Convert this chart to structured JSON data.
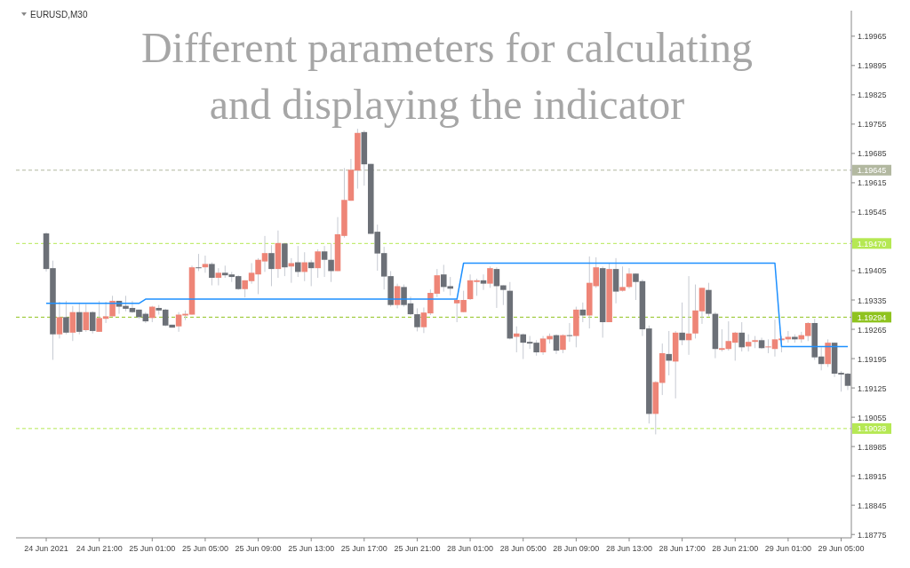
{
  "chart_data": {
    "type": "candlestick",
    "title": "Different parameters for calculating and displaying the indicator",
    "subtitle": "EURUSD,M30",
    "categories": [
      "24 Jun 2021",
      null,
      null,
      null,
      null,
      null,
      null,
      null,
      "24 Jun 21:00",
      null,
      null,
      null,
      null,
      null,
      null,
      null,
      "25 Jun 01:00",
      null,
      null,
      null,
      null,
      null,
      null,
      null,
      "25 Jun 05:00",
      null,
      null,
      null,
      null,
      null,
      null,
      null,
      "25 Jun 09:00",
      null,
      null,
      null,
      null,
      null,
      null,
      null,
      "25 Jun 13:00",
      null,
      null,
      null,
      null,
      null,
      null,
      null,
      "25 Jun 17:00",
      null,
      null,
      null,
      null,
      null,
      null,
      null,
      "25 Jun 21:00",
      null,
      null,
      null,
      null,
      null,
      null,
      null,
      "28 Jun 01:00",
      null,
      null,
      null,
      null,
      null,
      null,
      null,
      "28 Jun 05:00",
      null,
      null,
      null,
      null,
      null,
      null,
      null,
      "28 Jun 09:00",
      null,
      null,
      null,
      null,
      null,
      null,
      null,
      "28 Jun 13:00",
      null,
      null,
      null,
      null,
      null,
      null,
      null,
      "28 Jun 17:00",
      null,
      null,
      null,
      null,
      null,
      null,
      null,
      "28 Jun 21:00",
      null,
      null,
      null,
      null,
      null,
      null,
      null,
      "29 Jun 01:00",
      null,
      null,
      null,
      null,
      null,
      null,
      null,
      "29 Jun 05:00",
      null
    ],
    "ohlc": [
      [
        1.19494,
        1.19497,
        1.19403,
        1.19409
      ],
      [
        1.19411,
        1.19429,
        1.19192,
        1.19253
      ],
      [
        1.19253,
        1.19331,
        1.19243,
        1.19294
      ],
      [
        1.19294,
        1.19333,
        1.19253,
        1.19257
      ],
      [
        1.19257,
        1.19321,
        1.19237,
        1.19306
      ],
      [
        1.19306,
        1.19329,
        1.19253,
        1.19259
      ],
      [
        1.19263,
        1.19325,
        1.19259,
        1.19306
      ],
      [
        1.19306,
        1.19308,
        1.19255,
        1.19261
      ],
      [
        1.19259,
        1.19333,
        1.19259,
        1.19292
      ],
      [
        1.1929,
        1.19331,
        1.1928,
        1.19296
      ],
      [
        1.19296,
        1.19345,
        1.19296,
        1.19333
      ],
      [
        1.19333,
        1.19333,
        1.19302,
        1.19319
      ],
      [
        1.19321,
        1.19345,
        1.19308,
        1.19314
      ],
      [
        1.19316,
        1.19333,
        1.19304,
        1.19306
      ],
      [
        1.19312,
        1.19312,
        1.1929,
        1.19294
      ],
      [
        1.19302,
        1.19306,
        1.1928,
        1.19284
      ],
      [
        1.19292,
        1.19321,
        1.19282,
        1.19319
      ],
      [
        1.19316,
        1.19323,
        1.193,
        1.1931
      ],
      [
        1.19312,
        1.19314,
        1.19272,
        1.19274
      ],
      [
        1.19276,
        1.19276,
        1.19269,
        1.19269
      ],
      [
        1.19272,
        1.19306,
        1.19259,
        1.193
      ],
      [
        1.19298,
        1.1931,
        1.19287,
        1.19302
      ],
      [
        1.193,
        1.19417,
        1.193,
        1.19413
      ],
      [
        1.19413,
        1.19445,
        1.19404,
        1.19411
      ],
      [
        1.19413,
        1.19441,
        1.194,
        1.19421
      ],
      [
        1.19421,
        1.19425,
        1.1937,
        1.19388
      ],
      [
        1.19388,
        1.19411,
        1.1937,
        1.194
      ],
      [
        1.194,
        1.19417,
        1.19388,
        1.19394
      ],
      [
        1.19396,
        1.19402,
        1.19378,
        1.1939
      ],
      [
        1.19392,
        1.19394,
        1.19359,
        1.19361
      ],
      [
        1.19361,
        1.19382,
        1.19341,
        1.19382
      ],
      [
        1.1938,
        1.19423,
        1.19374,
        1.194
      ],
      [
        1.19396,
        1.19435,
        1.19349,
        1.19431
      ],
      [
        1.19427,
        1.19488,
        1.19402,
        1.19447
      ],
      [
        1.19447,
        1.19466,
        1.19368,
        1.19409
      ],
      [
        1.19409,
        1.19501,
        1.19388,
        1.19471
      ],
      [
        1.1947,
        1.1947,
        1.19392,
        1.19413
      ],
      [
        1.19415,
        1.19435,
        1.19376,
        1.19423
      ],
      [
        1.19425,
        1.19464,
        1.1939,
        1.19402
      ],
      [
        1.19402,
        1.19449,
        1.1938,
        1.19425
      ],
      [
        1.19425,
        1.19431,
        1.19368,
        1.19411
      ],
      [
        1.19411,
        1.19456,
        1.19388,
        1.19451
      ],
      [
        1.19451,
        1.19464,
        1.1939,
        1.19431
      ],
      [
        1.19431,
        1.1947,
        1.19378,
        1.19404
      ],
      [
        1.19404,
        1.19533,
        1.19404,
        1.19492
      ],
      [
        1.19488,
        1.1965,
        1.19484,
        1.19574
      ],
      [
        1.19572,
        1.19672,
        1.19572,
        1.19646
      ],
      [
        1.19644,
        1.19744,
        1.19601,
        1.19734
      ],
      [
        1.19736,
        1.1974,
        1.19608,
        1.19659
      ],
      [
        1.1966,
        1.1966,
        1.19493,
        1.19493
      ],
      [
        1.19498,
        1.19515,
        1.19405,
        1.19446
      ],
      [
        1.19447,
        1.19462,
        1.1936,
        1.19391
      ],
      [
        1.19392,
        1.19404,
        1.19319,
        1.19323
      ],
      [
        1.19323,
        1.19374,
        1.19315,
        1.19368
      ],
      [
        1.19366,
        1.19372,
        1.19319,
        1.19323
      ],
      [
        1.19327,
        1.19343,
        1.19299,
        1.19301
      ],
      [
        1.19301,
        1.19315,
        1.1926,
        1.1927
      ],
      [
        1.1927,
        1.19317,
        1.19256,
        1.19305
      ],
      [
        1.19303,
        1.1936,
        1.19299,
        1.19352
      ],
      [
        1.1935,
        1.19409,
        1.19342,
        1.19394
      ],
      [
        1.19396,
        1.19419,
        1.19355,
        1.19366
      ],
      [
        1.19368,
        1.1939,
        1.19346,
        1.19362
      ],
      [
        1.19327,
        1.19337,
        1.19282,
        1.19335
      ],
      [
        1.19306,
        1.19357,
        1.19306,
        1.19335
      ],
      [
        1.19337,
        1.19396,
        1.19335,
        1.19382
      ],
      [
        1.19378,
        1.19386,
        1.19345,
        1.19382
      ],
      [
        1.19382,
        1.19396,
        1.19359,
        1.19374
      ],
      [
        1.19374,
        1.19415,
        1.19364,
        1.19411
      ],
      [
        1.19409,
        1.19413,
        1.19316,
        1.19368
      ],
      [
        1.1937,
        1.1937,
        1.19323,
        1.19359
      ],
      [
        1.19357,
        1.19378,
        1.19241,
        1.19243
      ],
      [
        1.19247,
        1.19272,
        1.1921,
        1.19255
      ],
      [
        1.19253,
        1.19255,
        1.19194,
        1.19233
      ],
      [
        1.19235,
        1.19249,
        1.19218,
        1.19231
      ],
      [
        1.19233,
        1.19239,
        1.19202,
        1.1921
      ],
      [
        1.1921,
        1.19249,
        1.19204,
        1.19243
      ],
      [
        1.19241,
        1.19255,
        1.19231,
        1.19249
      ],
      [
        1.19251,
        1.19253,
        1.19206,
        1.19214
      ],
      [
        1.19216,
        1.19253,
        1.19208,
        1.19251
      ],
      [
        1.19251,
        1.1928,
        1.19235,
        1.19249
      ],
      [
        1.19249,
        1.19319,
        1.19222,
        1.19312
      ],
      [
        1.19312,
        1.19329,
        1.19282,
        1.19298
      ],
      [
        1.19298,
        1.19439,
        1.19267,
        1.19376
      ],
      [
        1.19368,
        1.19437,
        1.19364,
        1.19413
      ],
      [
        1.19411,
        1.19415,
        1.19245,
        1.19282
      ],
      [
        1.19282,
        1.19423,
        1.19282,
        1.19409
      ],
      [
        1.19409,
        1.19435,
        1.19327,
        1.19355
      ],
      [
        1.19357,
        1.19415,
        1.19355,
        1.19366
      ],
      [
        1.19366,
        1.19411,
        1.19362,
        1.19398
      ],
      [
        1.19398,
        1.19398,
        1.19335,
        1.19378
      ],
      [
        1.1938,
        1.19384,
        1.19249,
        1.19265
      ],
      [
        1.19267,
        1.19274,
        1.1904,
        1.19063
      ],
      [
        1.19063,
        1.19141,
        1.19014,
        1.19139
      ],
      [
        1.19137,
        1.19231,
        1.19108,
        1.19208
      ],
      [
        1.19206,
        1.19261,
        1.19155,
        1.1919
      ],
      [
        1.19188,
        1.19261,
        1.191,
        1.19257
      ],
      [
        1.19257,
        1.19329,
        1.19227,
        1.19239
      ],
      [
        1.19239,
        1.19392,
        1.19204,
        1.19255
      ],
      [
        1.19255,
        1.19372,
        1.19243,
        1.1931
      ],
      [
        1.19308,
        1.19364,
        1.19278,
        1.19364
      ],
      [
        1.19359,
        1.19376,
        1.19296,
        1.19302
      ],
      [
        1.19302,
        1.19306,
        1.19196,
        1.19218
      ],
      [
        1.19216,
        1.19265,
        1.19212,
        1.1922
      ],
      [
        1.19218,
        1.19284,
        1.19214,
        1.19237
      ],
      [
        1.19233,
        1.19259,
        1.1919,
        1.19257
      ],
      [
        1.19257,
        1.19282,
        1.19212,
        1.19222
      ],
      [
        1.19224,
        1.19253,
        1.19212,
        1.19235
      ],
      [
        1.19235,
        1.19249,
        1.1922,
        1.19239
      ],
      [
        1.19239,
        1.19245,
        1.19218,
        1.1922
      ],
      [
        1.19222,
        1.19241,
        1.19208,
        1.19224
      ],
      [
        1.19218,
        1.19288,
        1.192,
        1.19241
      ],
      [
        1.19239,
        1.19249,
        1.1921,
        1.19243
      ],
      [
        1.19241,
        1.19261,
        1.19233,
        1.19247
      ],
      [
        1.19247,
        1.19253,
        1.19233,
        1.19241
      ],
      [
        1.19241,
        1.19259,
        1.19233,
        1.19251
      ],
      [
        1.19249,
        1.19282,
        1.19237,
        1.1928
      ],
      [
        1.1928,
        1.1929,
        1.19192,
        1.19198
      ],
      [
        1.192,
        1.19222,
        1.19167,
        1.19182
      ],
      [
        1.19182,
        1.19241,
        1.19175,
        1.19233
      ],
      [
        1.19233,
        1.19233,
        1.19151,
        1.19159
      ],
      [
        1.19161,
        1.19165,
        1.19116,
        1.19157
      ],
      [
        1.19159,
        1.19161,
        1.1912,
        1.1913
      ]
    ],
    "colors": [
      "#6c7077",
      "#6c7077",
      "#ee8577",
      "#6c7077",
      "#ee8577",
      "#6c7077",
      "#ee8577",
      "#6c7077",
      "#ee8577",
      "#ee8577",
      "#ee8577",
      "#6c7077",
      "#6c7077",
      "#6c7077",
      "#6c7077",
      "#6c7077",
      "#ee8577",
      "#6c7077",
      "#6c7077",
      "#6c7077",
      "#ee8577",
      "#ee8577",
      "#ee8577",
      "#6c7077",
      "#ee8577",
      "#6c7077",
      "#ee8577",
      "#6c7077",
      "#6c7077",
      "#6c7077",
      "#ee8577",
      "#ee8577",
      "#ee8577",
      "#ee8577",
      "#6c7077",
      "#ee8577",
      "#6c7077",
      "#ee8577",
      "#6c7077",
      "#ee8577",
      "#6c7077",
      "#ee8577",
      "#6c7077",
      "#6c7077",
      "#ee8577",
      "#ee8577",
      "#ee8577",
      "#ee8577",
      "#6c7077",
      "#6c7077",
      "#6c7077",
      "#6c7077",
      "#6c7077",
      "#ee8577",
      "#6c7077",
      "#6c7077",
      "#6c7077",
      "#ee8577",
      "#ee8577",
      "#ee8577",
      "#6c7077",
      "#6c7077",
      "#ee8577",
      "#ee8577",
      "#ee8577",
      "#ee8577",
      "#6c7077",
      "#ee8577",
      "#6c7077",
      "#6c7077",
      "#6c7077",
      "#ee8577",
      "#6c7077",
      "#6c7077",
      "#6c7077",
      "#ee8577",
      "#ee8577",
      "#6c7077",
      "#ee8577",
      "#6c7077",
      "#ee8577",
      "#6c7077",
      "#ee8577",
      "#ee8577",
      "#6c7077",
      "#ee8577",
      "#6c7077",
      "#ee8577",
      "#ee8577",
      "#6c7077",
      "#6c7077",
      "#6c7077",
      "#ee8577",
      "#ee8577",
      "#6c7077",
      "#ee8577",
      "#6c7077",
      "#ee8577",
      "#ee8577",
      "#ee8577",
      "#6c7077",
      "#6c7077",
      "#ee8577",
      "#ee8577",
      "#ee8577",
      "#6c7077",
      "#ee8577",
      "#ee8577",
      "#6c7077",
      "#ee8577",
      "#ee8577",
      "#ee8577",
      "#ee8577",
      "#6c7077",
      "#ee8577",
      "#ee8577",
      "#6c7077",
      "#6c7077",
      "#ee8577",
      "#6c7077",
      "#6c7077",
      "#6c7077"
    ],
    "series": [
      {
        "type": "line",
        "color": "#1e90ff",
        "values": [
          1.19327,
          1.19327,
          1.19327,
          1.19327,
          1.19327,
          1.19327,
          1.19327,
          1.19327,
          1.19327,
          1.19327,
          1.19327,
          1.19327,
          1.19327,
          1.19327,
          1.19327,
          1.19337,
          1.19337,
          1.19337,
          1.19337,
          1.19337,
          1.19337,
          1.19337,
          1.19337,
          1.19337,
          1.19337,
          1.19337,
          1.19337,
          1.19337,
          1.19337,
          1.19337,
          1.19337,
          1.19337,
          1.19337,
          1.19337,
          1.19337,
          1.19337,
          1.19337,
          1.19337,
          1.19337,
          1.19337,
          1.19337,
          1.19337,
          1.19337,
          1.19337,
          1.19337,
          1.19337,
          1.19337,
          1.19337,
          1.19337,
          1.19337,
          1.19337,
          1.19337,
          1.19337,
          1.19337,
          1.19337,
          1.19337,
          1.19337,
          1.19337,
          1.19337,
          1.19337,
          1.19337,
          1.19337,
          1.19337,
          1.19423,
          1.19423,
          1.19423,
          1.19423,
          1.19423,
          1.19423,
          1.19423,
          1.19423,
          1.19423,
          1.19423,
          1.19423,
          1.19423,
          1.19423,
          1.19423,
          1.19423,
          1.19423,
          1.19423,
          1.19423,
          1.19423,
          1.19423,
          1.19423,
          1.19423,
          1.19423,
          1.19423,
          1.19423,
          1.19423,
          1.19423,
          1.19423,
          1.19423,
          1.19423,
          1.19423,
          1.19423,
          1.19423,
          1.19423,
          1.19423,
          1.19423,
          1.19423,
          1.19423,
          1.19423,
          1.19423,
          1.19423,
          1.19423,
          1.19423,
          1.19423,
          1.19423,
          1.19423,
          1.19423,
          1.19423,
          1.19224,
          1.19224,
          1.19224,
          1.19224,
          1.19224,
          1.19224,
          1.19224,
          1.19224,
          1.19224,
          1.19224,
          1.19224
        ]
      }
    ],
    "ylim": [
      1.18767,
      1.20026
    ],
    "yticks": [
      1.19965,
      1.19895,
      1.19825,
      1.19755,
      1.19685,
      1.19615,
      1.19545,
      {
        "value": 1.19475,
        "label": null
      },
      1.19405,
      1.19335,
      1.19265,
      1.19195,
      1.19125,
      1.19055,
      1.18985,
      1.18915,
      1.18845,
      1.18775
    ],
    "ref_lines": [
      {
        "axis": "y",
        "value": 1.19645,
        "label": "1.19645",
        "color": "#b2b8a0",
        "line_style": "dashed"
      },
      {
        "axis": "y",
        "value": 1.1947,
        "label": "1.19470",
        "color": "#b5e853",
        "line_style": "dashed"
      },
      {
        "axis": "y",
        "value": 1.19294,
        "label": "1.19294",
        "color": "#8fc31f",
        "line_style": "dashed"
      },
      {
        "axis": "y",
        "value": 1.19028,
        "label": "1.19028",
        "color": "#b5e853",
        "line_style": "dashed"
      }
    ],
    "grid": false
  }
}
